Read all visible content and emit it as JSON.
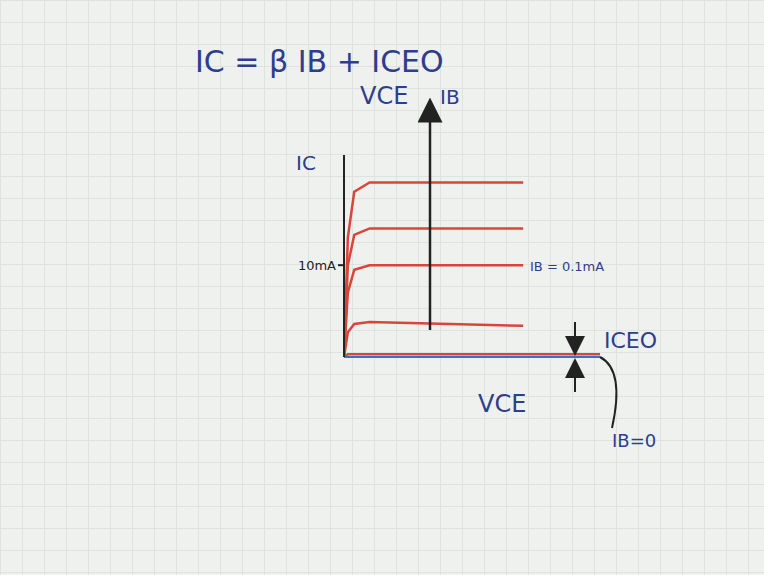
{
  "chart_data": {
    "type": "line",
    "title": "IC = β IB + ICEO",
    "x_label": "VCE",
    "y_label": "IC",
    "x": [
      0,
      0.15,
      0.4,
      1,
      7,
      10
    ],
    "series": [
      {
        "name": "IB=0",
        "color": "#d9453b",
        "values": [
          0,
          0.3,
          0.3,
          0.3,
          0.3,
          0.3
        ]
      },
      {
        "color": "#d9453b",
        "values": [
          0,
          2.7,
          3.6,
          3.8,
          3.4,
          null
        ]
      },
      {
        "name": "IB = 0.1mA",
        "color": "#d9453b",
        "values": [
          0,
          7,
          9.5,
          10,
          10,
          null
        ]
      },
      {
        "color": "#d9453b",
        "values": [
          0,
          10,
          13.3,
          14,
          14,
          null
        ]
      },
      {
        "color": "#d9453b",
        "values": [
          0,
          13,
          18,
          19,
          19,
          null
        ]
      }
    ],
    "xlim": [
      0,
      10
    ],
    "ylim": [
      0,
      22
    ],
    "yticks": [
      {
        "value": 10,
        "label": "10mA"
      }
    ],
    "tick_labels": "y",
    "grid": false,
    "annotations": [
      {
        "text": "VCE"
      },
      {
        "text": "IB"
      },
      {
        "text": "ICEO"
      }
    ]
  }
}
